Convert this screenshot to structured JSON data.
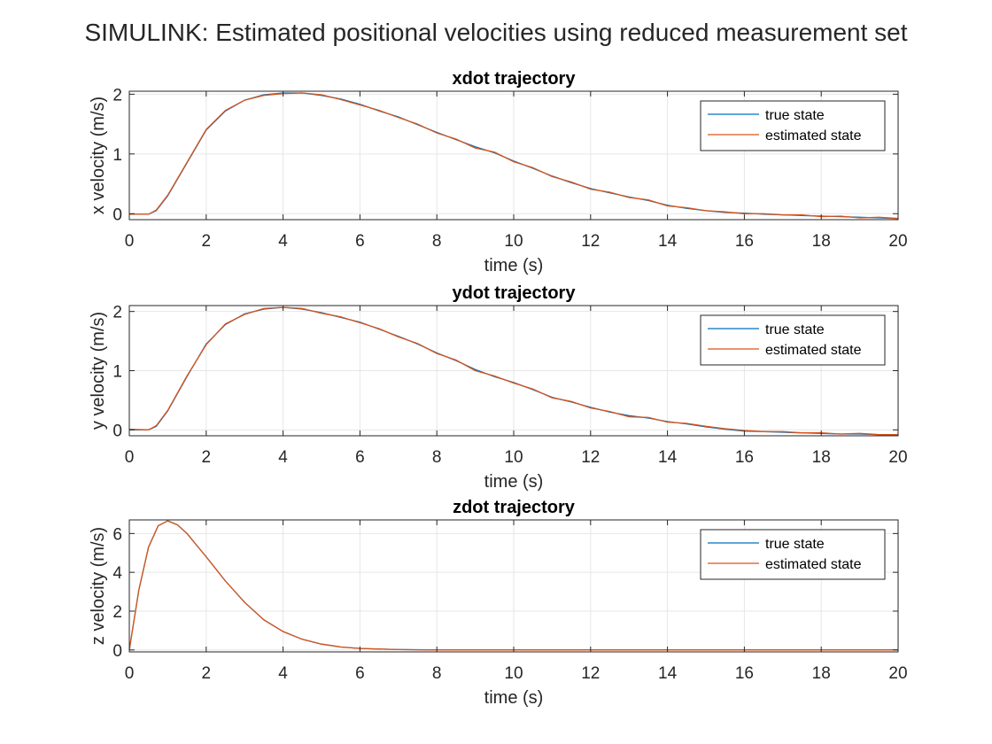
{
  "figure": {
    "suptitle": "SIMULINK: Estimated positional velocities using reduced measurement set"
  },
  "colors": {
    "true_state": "#0072BD",
    "estimated_state": "#D95319",
    "grid": "#e6e6e6",
    "axis": "#262626"
  },
  "chart_data": [
    {
      "type": "line",
      "title": "xdot trajectory",
      "xlabel": "time (s)",
      "ylabel": "x velocity (m/s)",
      "xlim": [
        0,
        20
      ],
      "ylim": [
        -0.1,
        2.05
      ],
      "xticks": [
        0,
        2,
        4,
        6,
        8,
        10,
        12,
        14,
        16,
        18,
        20
      ],
      "yticks": [
        0,
        1,
        2
      ],
      "grid": true,
      "legend": "top-right",
      "series": [
        {
          "name": "true state",
          "x": [
            0,
            0.5,
            0.7,
            1,
            1.5,
            2,
            2.5,
            3,
            3.5,
            4,
            4.5,
            5,
            5.5,
            6,
            6.5,
            7,
            7.5,
            8,
            8.5,
            9,
            9.5,
            10,
            10.5,
            11,
            11.5,
            12,
            12.5,
            13,
            13.5,
            14,
            14.5,
            15,
            15.5,
            16,
            16.5,
            17,
            17.5,
            18,
            18.5,
            19,
            19.5,
            20
          ],
          "y": [
            -0.01,
            -0.01,
            0.05,
            0.3,
            0.85,
            1.4,
            1.72,
            1.9,
            1.99,
            2.02,
            2.02,
            1.98,
            1.92,
            1.83,
            1.72,
            1.62,
            1.49,
            1.36,
            1.24,
            1.12,
            1.02,
            0.88,
            0.76,
            0.63,
            0.52,
            0.42,
            0.35,
            0.28,
            0.22,
            0.14,
            0.09,
            0.05,
            0.02,
            0.01,
            -0.01,
            -0.02,
            -0.03,
            -0.04,
            -0.05,
            -0.06,
            -0.07,
            -0.08
          ]
        },
        {
          "name": "estimated state",
          "x": [
            0,
            0.5,
            0.7,
            1,
            1.5,
            2,
            2.5,
            3,
            3.5,
            4,
            4.5,
            5,
            5.5,
            6,
            6.5,
            7,
            7.5,
            8,
            8.5,
            9,
            9.5,
            10,
            10.5,
            11,
            11.5,
            12,
            12.5,
            13,
            13.5,
            14,
            14.5,
            15,
            15.5,
            16,
            16.5,
            17,
            17.5,
            18,
            18.5,
            19,
            19.5,
            20
          ],
          "y": [
            -0.01,
            -0.01,
            0.06,
            0.31,
            0.86,
            1.41,
            1.73,
            1.9,
            1.98,
            2.01,
            2.02,
            1.99,
            1.91,
            1.82,
            1.73,
            1.61,
            1.5,
            1.35,
            1.25,
            1.1,
            1.03,
            0.87,
            0.77,
            0.62,
            0.53,
            0.41,
            0.36,
            0.27,
            0.23,
            0.13,
            0.1,
            0.05,
            0.03,
            0.0,
            0.0,
            -0.02,
            -0.02,
            -0.05,
            -0.04,
            -0.07,
            -0.06,
            -0.08
          ]
        }
      ]
    },
    {
      "type": "line",
      "title": "ydot trajectory",
      "xlabel": "time (s)",
      "ylabel": "y velocity (m/s)",
      "xlim": [
        0,
        20
      ],
      "ylim": [
        -0.1,
        2.1
      ],
      "xticks": [
        0,
        2,
        4,
        6,
        8,
        10,
        12,
        14,
        16,
        18,
        20
      ],
      "yticks": [
        0,
        1,
        2
      ],
      "grid": true,
      "legend": "top-right",
      "series": [
        {
          "name": "true state",
          "x": [
            0,
            0.5,
            0.7,
            1,
            1.5,
            2,
            2.5,
            3,
            3.5,
            4,
            4.5,
            5,
            5.5,
            6,
            6.5,
            7,
            7.5,
            8,
            8.5,
            9,
            9.5,
            10,
            10.5,
            11,
            11.5,
            12,
            12.5,
            13,
            13.5,
            14,
            14.5,
            15,
            15.5,
            16,
            16.5,
            17,
            17.5,
            18,
            18.5,
            19,
            19.5,
            20
          ],
          "y": [
            0.0,
            0.0,
            0.06,
            0.32,
            0.9,
            1.45,
            1.78,
            1.96,
            2.04,
            2.07,
            2.04,
            1.98,
            1.9,
            1.82,
            1.7,
            1.58,
            1.45,
            1.3,
            1.17,
            1.02,
            0.9,
            0.8,
            0.68,
            0.55,
            0.47,
            0.38,
            0.3,
            0.24,
            0.2,
            0.14,
            0.1,
            0.05,
            0.01,
            -0.02,
            -0.03,
            -0.04,
            -0.05,
            -0.06,
            -0.07,
            -0.07,
            -0.08,
            -0.09
          ]
        },
        {
          "name": "estimated state",
          "x": [
            0,
            0.5,
            0.7,
            1,
            1.5,
            2,
            2.5,
            3,
            3.5,
            4,
            4.5,
            5,
            5.5,
            6,
            6.5,
            7,
            7.5,
            8,
            8.5,
            9,
            9.5,
            10,
            10.5,
            11,
            11.5,
            12,
            12.5,
            13,
            13.5,
            14,
            14.5,
            15,
            15.5,
            16,
            16.5,
            17,
            17.5,
            18,
            18.5,
            19,
            19.5,
            20
          ],
          "y": [
            0.01,
            0.0,
            0.07,
            0.33,
            0.91,
            1.44,
            1.79,
            1.95,
            2.05,
            2.07,
            2.05,
            1.97,
            1.91,
            1.81,
            1.71,
            1.57,
            1.46,
            1.29,
            1.18,
            1.0,
            0.91,
            0.79,
            0.69,
            0.54,
            0.48,
            0.37,
            0.31,
            0.22,
            0.21,
            0.13,
            0.11,
            0.06,
            0.02,
            -0.01,
            -0.03,
            -0.03,
            -0.05,
            -0.05,
            -0.07,
            -0.06,
            -0.08,
            -0.08
          ]
        }
      ]
    },
    {
      "type": "line",
      "title": "zdot trajectory",
      "xlabel": "time (s)",
      "ylabel": "z velocity (m/s)",
      "xlim": [
        0,
        20
      ],
      "ylim": [
        -0.1,
        6.7
      ],
      "xticks": [
        0,
        2,
        4,
        6,
        8,
        10,
        12,
        14,
        16,
        18,
        20
      ],
      "yticks": [
        0,
        2,
        4,
        6
      ],
      "grid": true,
      "legend": "top-right",
      "series": [
        {
          "name": "true state",
          "x": [
            0,
            0.25,
            0.5,
            0.75,
            1,
            1.25,
            1.5,
            1.75,
            2,
            2.5,
            3,
            3.5,
            4,
            4.5,
            5,
            5.5,
            6,
            7,
            8,
            10,
            12,
            14,
            16,
            18,
            20
          ],
          "y": [
            0,
            3.1,
            5.3,
            6.4,
            6.65,
            6.45,
            6.0,
            5.4,
            4.8,
            3.55,
            2.45,
            1.55,
            0.95,
            0.55,
            0.3,
            0.15,
            0.08,
            0.02,
            0.0,
            0.0,
            0.0,
            0.0,
            0.0,
            0.0,
            0.0
          ]
        },
        {
          "name": "estimated state",
          "x": [
            0,
            0.25,
            0.5,
            0.75,
            1,
            1.25,
            1.5,
            1.75,
            2,
            2.5,
            3,
            3.5,
            4,
            4.5,
            5,
            5.5,
            6,
            7,
            8,
            10,
            12,
            14,
            16,
            18,
            20
          ],
          "y": [
            0,
            3.1,
            5.3,
            6.4,
            6.65,
            6.45,
            6.0,
            5.4,
            4.8,
            3.55,
            2.45,
            1.55,
            0.95,
            0.55,
            0.3,
            0.15,
            0.08,
            0.02,
            0.0,
            0.0,
            0.0,
            0.0,
            0.0,
            0.0,
            0.0
          ]
        }
      ]
    }
  ]
}
